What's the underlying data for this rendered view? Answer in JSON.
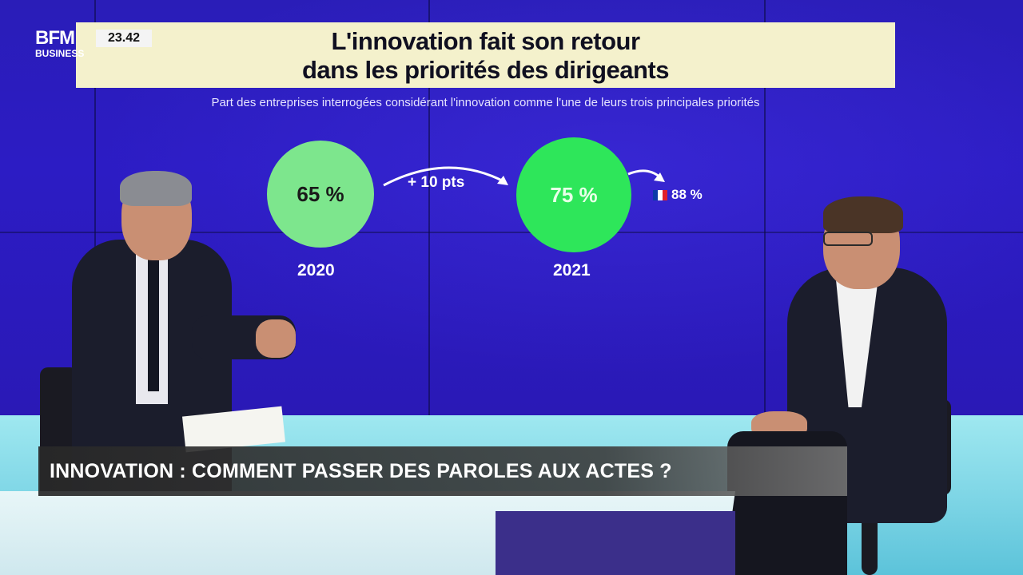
{
  "broadcast": {
    "logo_main": "BFM",
    "logo_sub": "BUSINESS",
    "clock": "23.42"
  },
  "infographic": {
    "title_line1": "L'innovation fait son retour",
    "title_line2": "dans les priorités des dirigeants",
    "subtitle": "Part des entreprises interrogées considérant l'innovation comme l'une de leurs trois principales priorités",
    "value_2020": "65 %",
    "year_2020": "2020",
    "delta": "+ 10 pts",
    "value_2021": "75 %",
    "year_2021": "2021",
    "france_value": "88 %",
    "flag_colors": [
      "#0a3aa8",
      "#ffffff",
      "#e0202a"
    ],
    "circle_2020_color": "#7de68d",
    "circle_2021_color": "#2ee65a"
  },
  "lower_third": {
    "headline": "INNOVATION : COMMENT PASSER DES PAROLES AUX ACTES ?"
  }
}
